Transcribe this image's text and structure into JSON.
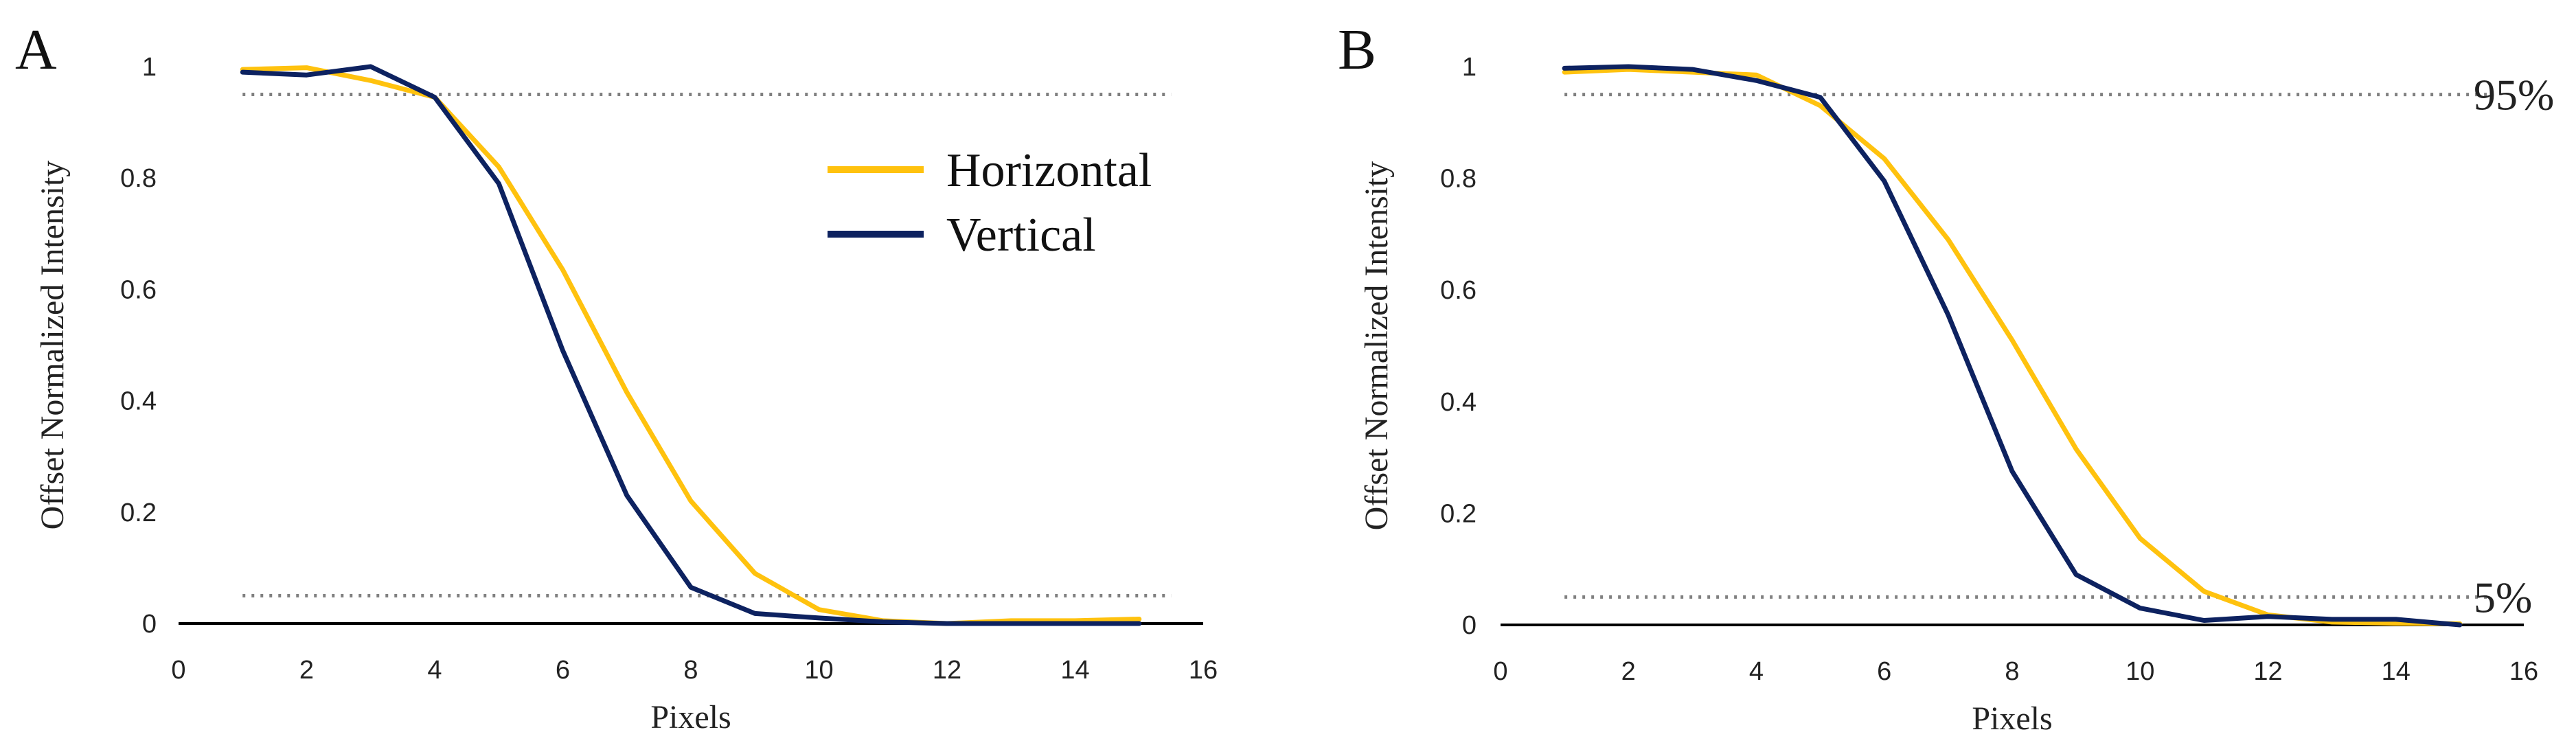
{
  "chart_data": [
    {
      "panel": "A",
      "type": "line",
      "title": "",
      "xlabel": "Pixels",
      "ylabel": "Offset Normalized Intensity",
      "xlim": [
        0,
        16
      ],
      "ylim": [
        0,
        1
      ],
      "xticks": [
        0,
        2,
        4,
        6,
        8,
        10,
        12,
        14,
        16
      ],
      "yticks": [
        0,
        0.2,
        0.4,
        0.6,
        0.8,
        1
      ],
      "ytick_labels": [
        "0",
        "0.2",
        "0.4",
        "0.6",
        "0.8",
        "1"
      ],
      "grid": false,
      "legend": {
        "placement": "top-right",
        "entries": [
          "Horizontal",
          "Vertical"
        ]
      },
      "reference_lines": [
        {
          "y": 0.95,
          "label": ""
        },
        {
          "y": 0.05,
          "label": ""
        }
      ],
      "x": [
        1,
        2,
        3,
        4,
        5,
        6,
        7,
        8,
        9,
        10,
        11,
        12,
        13,
        14,
        15
      ],
      "series": [
        {
          "name": "Horizontal",
          "color": "#FFC20E",
          "values": [
            0.995,
            0.998,
            0.975,
            0.945,
            0.82,
            0.635,
            0.415,
            0.22,
            0.09,
            0.025,
            0.005,
            0.0,
            0.005,
            0.005,
            0.008
          ]
        },
        {
          "name": "Vertical",
          "color": "#0D2260",
          "values": [
            0.99,
            0.985,
            1.0,
            0.945,
            0.79,
            0.49,
            0.23,
            0.065,
            0.018,
            0.01,
            0.003,
            0.0,
            0.0,
            0.0,
            0.0
          ]
        }
      ]
    },
    {
      "panel": "B",
      "type": "line",
      "title": "",
      "xlabel": "Pixels",
      "ylabel": "Offset Normalized Intensity",
      "xlim": [
        0,
        16
      ],
      "ylim": [
        0,
        1
      ],
      "xticks": [
        0,
        2,
        4,
        6,
        8,
        10,
        12,
        14,
        16
      ],
      "yticks": [
        0,
        0.2,
        0.4,
        0.6,
        0.8,
        1
      ],
      "ytick_labels": [
        "0",
        "0.2",
        "0.4",
        "0.6",
        "0.8",
        "1"
      ],
      "grid": false,
      "legend": null,
      "reference_lines": [
        {
          "y": 0.95,
          "label": "95%"
        },
        {
          "y": 0.05,
          "label": "5%"
        }
      ],
      "x": [
        1,
        2,
        3,
        4,
        5,
        6,
        7,
        8,
        9,
        10,
        11,
        12,
        13,
        14,
        15
      ],
      "series": [
        {
          "name": "Horizontal",
          "color": "#FFC20E",
          "values": [
            0.99,
            0.995,
            0.99,
            0.985,
            0.93,
            0.835,
            0.69,
            0.51,
            0.315,
            0.155,
            0.06,
            0.018,
            0.005,
            0.003,
            0.002
          ]
        },
        {
          "name": "Vertical",
          "color": "#0D2260",
          "values": [
            0.997,
            1.0,
            0.995,
            0.975,
            0.945,
            0.795,
            0.555,
            0.275,
            0.09,
            0.03,
            0.008,
            0.015,
            0.01,
            0.01,
            0.0
          ]
        }
      ]
    }
  ]
}
